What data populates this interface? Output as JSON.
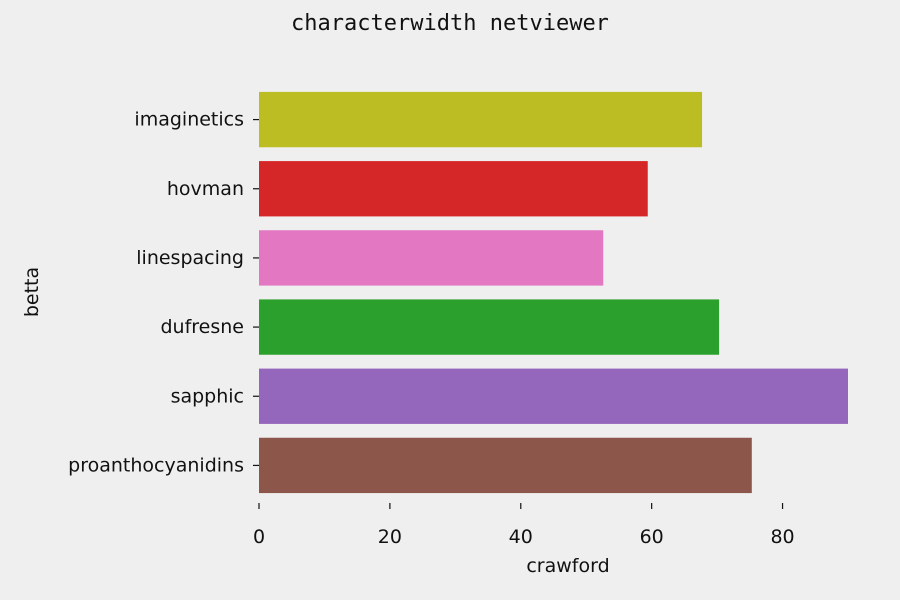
{
  "chart_data": {
    "type": "bar",
    "orientation": "horizontal",
    "title": "characterwidth netviewer",
    "xlabel": "crawford",
    "ylabel": "betta",
    "xlim": [
      0,
      90
    ],
    "xticks": [
      0,
      20,
      40,
      60,
      80
    ],
    "grid": false,
    "categories": [
      "imaginetics",
      "hovman",
      "linespacing",
      "dufresne",
      "sapphic",
      "proanthocyanidins"
    ],
    "values": [
      67.7,
      59.4,
      52.6,
      70.3,
      90,
      75.3
    ],
    "colors": [
      "#bcbd22",
      "#d62728",
      "#e377c2",
      "#2ca02c",
      "#9467bd",
      "#8c564b"
    ]
  }
}
